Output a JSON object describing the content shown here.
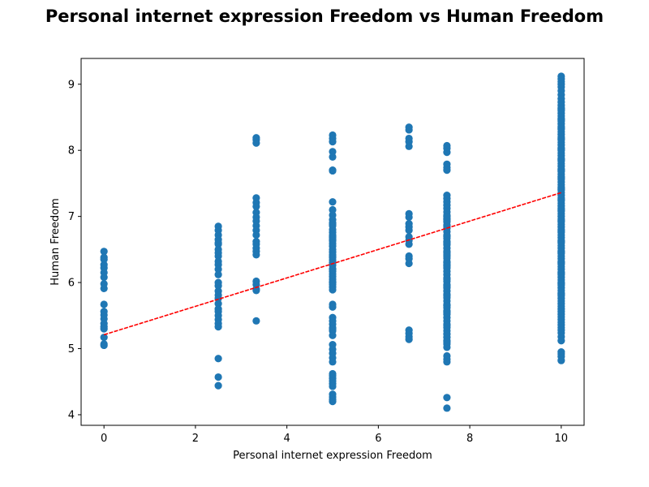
{
  "chart_data": {
    "type": "scatter",
    "title": "Personal internet expression Freedom vs Human Freedom",
    "xlabel": "Personal internet expression Freedom",
    "ylabel": "Human Freedom",
    "xlim": [
      -0.5,
      10.5
    ],
    "ylim": [
      3.84,
      9.39
    ],
    "xticks": [
      0,
      2,
      4,
      6,
      8,
      10
    ],
    "yticks": [
      4,
      5,
      6,
      7,
      8,
      9
    ],
    "grid": false,
    "colors": {
      "points": "#1f77b4",
      "trend": "#ff0000"
    },
    "trendline": {
      "x": [
        0,
        10
      ],
      "y": [
        5.21,
        7.36
      ]
    },
    "series": [
      {
        "x": [
          0,
          0,
          0,
          0,
          0,
          0,
          0,
          0,
          0,
          0,
          0,
          0,
          0,
          0,
          0,
          0,
          0,
          0,
          0
        ],
        "y": [
          6.47,
          6.38,
          6.27,
          6.22,
          6.15,
          6.08,
          5.98,
          5.91,
          5.67,
          5.56,
          5.51,
          5.45,
          5.38,
          5.33,
          5.3,
          5.17,
          5.07,
          5.05,
          6.35
        ]
      },
      {
        "x": [
          2.5,
          2.5,
          2.5,
          2.5,
          2.5,
          2.5,
          2.5,
          2.5,
          2.5,
          2.5,
          2.5,
          2.5,
          2.5,
          2.5,
          2.5,
          2.5,
          2.5,
          2.5,
          2.5,
          2.5,
          2.5,
          2.5,
          2.5,
          2.5,
          2.5,
          2.5,
          2.5,
          2.5
        ],
        "y": [
          6.85,
          6.79,
          6.72,
          6.65,
          6.58,
          6.5,
          6.4,
          6.32,
          6.27,
          6.2,
          5.87,
          5.81,
          5.76,
          5.68,
          5.6,
          5.56,
          5.5,
          5.44,
          5.38,
          5.33,
          4.85,
          4.57,
          4.44,
          6.0,
          6.12,
          5.95,
          6.6,
          6.45
        ]
      },
      {
        "x": [
          3.33,
          3.33,
          3.33,
          3.33,
          3.33,
          3.33,
          3.33,
          3.33,
          3.33,
          3.33,
          3.33,
          3.33,
          3.33,
          3.33,
          3.33,
          3.33,
          3.33,
          3.33,
          3.33,
          3.33,
          3.33,
          3.33
        ],
        "y": [
          8.19,
          8.16,
          8.11,
          7.28,
          7.21,
          7.15,
          7.06,
          6.99,
          6.93,
          6.86,
          6.79,
          6.72,
          6.58,
          6.52,
          6.47,
          6.42,
          6.02,
          5.97,
          5.9,
          5.88,
          5.42,
          6.62
        ]
      },
      {
        "x": [
          5,
          5,
          5,
          5,
          5,
          5,
          5,
          5,
          5,
          5,
          5,
          5,
          5,
          5,
          5,
          5,
          5,
          5,
          5,
          5,
          5,
          5,
          5,
          5,
          5,
          5,
          5,
          5,
          5,
          5,
          5,
          5,
          5,
          5,
          5,
          5,
          5,
          5,
          5,
          5,
          5,
          5,
          5,
          5,
          5,
          5,
          5,
          5,
          5,
          5,
          5,
          5,
          5,
          5,
          5,
          5,
          5,
          5,
          5,
          5,
          5,
          5,
          5,
          5,
          5,
          5
        ],
        "y": [
          8.23,
          8.18,
          8.13,
          7.98,
          7.9,
          7.7,
          7.69,
          7.22,
          7.1,
          7.02,
          6.95,
          6.9,
          6.86,
          6.8,
          6.76,
          6.72,
          6.68,
          6.63,
          6.59,
          6.55,
          6.5,
          6.46,
          6.42,
          6.38,
          6.34,
          6.3,
          6.26,
          6.21,
          6.17,
          6.13,
          6.09,
          6.05,
          6.01,
          5.97,
          5.93,
          5.89,
          5.67,
          5.63,
          5.47,
          5.42,
          5.37,
          5.32,
          5.27,
          5.2,
          5.06,
          4.99,
          4.93,
          4.86,
          4.8,
          4.59,
          4.55,
          4.51,
          4.47,
          4.43,
          4.31,
          4.27,
          4.23,
          4.2,
          6.65,
          6.4,
          6.2,
          6.0,
          6.7,
          5.3,
          4.62,
          6.88
        ]
      },
      {
        "x": [
          6.67,
          6.67,
          6.67,
          6.67,
          6.67,
          6.67,
          6.67,
          6.67,
          6.67,
          6.67,
          6.67,
          6.67,
          6.67,
          6.67,
          6.67,
          6.67,
          6.67,
          6.67,
          6.67,
          6.67
        ],
        "y": [
          8.35,
          8.31,
          8.18,
          8.13,
          8.06,
          7.04,
          6.99,
          6.89,
          6.84,
          6.79,
          6.69,
          6.64,
          6.58,
          6.4,
          6.36,
          6.29,
          5.28,
          5.23,
          5.18,
          5.14
        ]
      },
      {
        "x": [
          7.5,
          7.5,
          7.5,
          7.5,
          7.5,
          7.5,
          7.5,
          7.5,
          7.5,
          7.5,
          7.5,
          7.5,
          7.5,
          7.5,
          7.5,
          7.5,
          7.5,
          7.5,
          7.5,
          7.5,
          7.5,
          7.5,
          7.5,
          7.5,
          7.5,
          7.5,
          7.5,
          7.5,
          7.5,
          7.5,
          7.5,
          7.5,
          7.5,
          7.5,
          7.5,
          7.5,
          7.5,
          7.5,
          7.5,
          7.5,
          7.5,
          7.5,
          7.5,
          7.5,
          7.5,
          7.5,
          7.5,
          7.5,
          7.5,
          7.5,
          7.5,
          7.5,
          7.5,
          7.5,
          7.5,
          7.5,
          7.5,
          7.5,
          7.5,
          7.5,
          7.5,
          7.5,
          7.5,
          7.5,
          7.5,
          7.5,
          7.5,
          7.5,
          7.5,
          7.5,
          7.5,
          7.5,
          7.5,
          7.5
        ],
        "y": [
          8.07,
          8.03,
          7.97,
          7.79,
          7.74,
          7.7,
          7.32,
          7.27,
          7.22,
          7.17,
          7.12,
          7.07,
          7.02,
          6.97,
          6.92,
          6.87,
          6.82,
          6.77,
          6.72,
          6.67,
          6.62,
          6.57,
          6.52,
          6.47,
          6.42,
          6.37,
          6.32,
          6.27,
          6.22,
          6.17,
          6.12,
          6.07,
          6.02,
          5.97,
          5.92,
          5.87,
          5.82,
          5.77,
          5.72,
          5.67,
          5.62,
          5.57,
          5.52,
          5.47,
          5.42,
          5.37,
          5.32,
          5.27,
          5.22,
          5.17,
          5.12,
          5.07,
          5.02,
          4.89,
          4.84,
          4.8,
          4.26,
          4.1,
          6.85,
          6.6,
          6.3,
          6.05,
          5.8,
          5.55,
          6.95,
          6.4,
          7.0,
          5.35,
          5.1,
          6.45,
          6.7,
          5.95,
          6.25,
          5.65
        ]
      },
      {
        "x": [
          10,
          10,
          10,
          10,
          10,
          10,
          10,
          10,
          10,
          10,
          10,
          10,
          10,
          10,
          10,
          10,
          10,
          10,
          10,
          10,
          10,
          10,
          10,
          10,
          10,
          10,
          10,
          10,
          10,
          10,
          10,
          10,
          10,
          10,
          10,
          10,
          10,
          10,
          10,
          10,
          10,
          10,
          10,
          10,
          10,
          10,
          10,
          10,
          10,
          10,
          10,
          10,
          10,
          10,
          10,
          10,
          10,
          10,
          10,
          10,
          10,
          10,
          10,
          10,
          10,
          10,
          10,
          10,
          10,
          10,
          10,
          10,
          10,
          10,
          10,
          10,
          10,
          10,
          10,
          10,
          10,
          10,
          10,
          10,
          10,
          10,
          10,
          10,
          10,
          10,
          10,
          10,
          10,
          10,
          10,
          10,
          10,
          10,
          10,
          10,
          10,
          10,
          10,
          10,
          10,
          10,
          10,
          10,
          10,
          10,
          10,
          10,
          10,
          10,
          10,
          10,
          10,
          10,
          10,
          10,
          10
        ],
        "y": [
          9.12,
          9.08,
          9.04,
          9.0,
          8.96,
          8.9,
          8.84,
          8.78,
          8.73,
          8.68,
          8.64,
          8.6,
          8.56,
          8.52,
          8.48,
          8.44,
          8.4,
          8.36,
          8.32,
          8.28,
          8.24,
          8.2,
          8.16,
          8.12,
          8.08,
          8.04,
          8.0,
          7.96,
          7.92,
          7.88,
          7.84,
          7.8,
          7.76,
          7.72,
          7.68,
          7.64,
          7.6,
          7.56,
          7.52,
          7.48,
          7.44,
          7.4,
          7.36,
          7.32,
          7.28,
          7.24,
          7.2,
          7.16,
          7.12,
          7.08,
          7.04,
          7.0,
          6.96,
          6.92,
          6.88,
          6.84,
          6.8,
          6.76,
          6.72,
          6.68,
          6.64,
          6.6,
          6.56,
          6.52,
          6.48,
          6.44,
          6.4,
          6.36,
          6.32,
          6.28,
          6.24,
          6.2,
          6.16,
          6.12,
          6.08,
          6.04,
          6.0,
          5.96,
          5.92,
          5.88,
          5.84,
          5.8,
          5.76,
          5.72,
          5.68,
          5.64,
          5.6,
          5.56,
          5.52,
          5.48,
          5.44,
          5.4,
          5.36,
          5.32,
          5.28,
          5.24,
          5.18,
          5.12,
          4.95,
          4.92,
          4.88,
          4.82,
          8.62,
          8.46,
          8.34,
          8.18,
          8.02,
          7.86,
          7.7,
          7.58,
          7.42,
          7.26,
          7.1,
          6.94,
          6.78,
          6.62,
          6.46,
          6.3,
          6.14,
          5.98,
          5.82
        ]
      }
    ]
  }
}
